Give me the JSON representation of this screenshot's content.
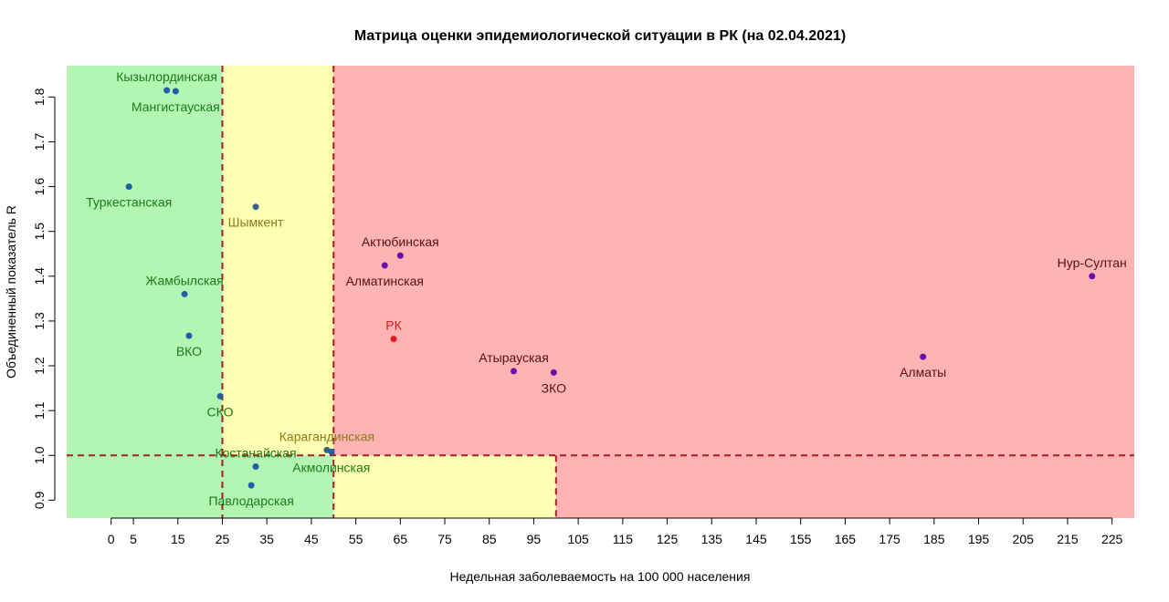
{
  "chart_data": {
    "type": "scatter",
    "title": "Матрица оценки эпидемиологической ситуации в РК (на 02.04.2021)",
    "xlabel": "Недельная заболеваемость на 100 000 населения",
    "ylabel": "Объединенный показатель R",
    "xlim": [
      -10,
      230
    ],
    "ylim": [
      0.86,
      1.87
    ],
    "x_ticks": [
      0,
      5,
      15,
      25,
      35,
      45,
      55,
      65,
      75,
      85,
      95,
      105,
      115,
      125,
      135,
      145,
      155,
      165,
      175,
      185,
      195,
      205,
      215,
      225
    ],
    "y_ticks": [
      0.9,
      1.0,
      1.1,
      1.2,
      1.3,
      1.4,
      1.5,
      1.6,
      1.7,
      1.8
    ],
    "thresholds": {
      "x": [
        25,
        50,
        100
      ],
      "y": 1.0
    },
    "zone_colors": {
      "green": "#b3f5b3",
      "yellow": "#ffffb3",
      "red": "#ffb3b3",
      "line": "#a32020"
    },
    "point_colors": {
      "green_zone": "#1f5fa8",
      "yellow_zone": "#3a5f8a",
      "red_zone": "#6a0dad",
      "rk": "#e11b1b"
    },
    "label_colors": {
      "green_zone": "#1a7a1a",
      "yellow_zone": "#8a7a1a",
      "red_zone": "#5a1010",
      "rk": "#e11b1b"
    },
    "points": [
      {
        "name": "Кызылординская",
        "x": 12.5,
        "y": 1.815,
        "zone": "green_zone",
        "label_pos": "above"
      },
      {
        "name": "Мангистауская",
        "x": 14.5,
        "y": 1.813,
        "zone": "green_zone",
        "label_pos": "below"
      },
      {
        "name": "Туркестанская",
        "x": 4,
        "y": 1.6,
        "zone": "green_zone",
        "label_pos": "below"
      },
      {
        "name": "Шымкент",
        "x": 32.5,
        "y": 1.555,
        "zone": "yellow_zone",
        "label_pos": "below"
      },
      {
        "name": "Жамбылская",
        "x": 16.5,
        "y": 1.36,
        "zone": "green_zone",
        "label_pos": "above"
      },
      {
        "name": "ВКО",
        "x": 17.5,
        "y": 1.267,
        "zone": "green_zone",
        "label_pos": "below"
      },
      {
        "name": "СКО",
        "x": 24.5,
        "y": 1.132,
        "zone": "green_zone",
        "label_pos": "below"
      },
      {
        "name": "Карагандинская",
        "x": 48.5,
        "y": 1.012,
        "zone": "yellow_zone",
        "label_pos": "above"
      },
      {
        "name": "Костанайская",
        "x": 32.5,
        "y": 0.975,
        "zone": "green_zone",
        "label_pos": "above"
      },
      {
        "name": "Акмолинская",
        "x": 49.5,
        "y": 1.008,
        "zone": "green_zone",
        "label_pos": "below"
      },
      {
        "name": "Павлодарская",
        "x": 31.5,
        "y": 0.933,
        "zone": "green_zone",
        "label_pos": "below"
      },
      {
        "name": "Актюбинская",
        "x": 65,
        "y": 1.446,
        "zone": "red_zone",
        "label_pos": "above"
      },
      {
        "name": "Алматинская",
        "x": 61.5,
        "y": 1.424,
        "zone": "red_zone",
        "label_pos": "below"
      },
      {
        "name": "РК",
        "x": 63.5,
        "y": 1.26,
        "zone": "rk",
        "label_pos": "above"
      },
      {
        "name": "Атырауская",
        "x": 90.5,
        "y": 1.188,
        "zone": "red_zone",
        "label_pos": "above"
      },
      {
        "name": "ЗКО",
        "x": 99.5,
        "y": 1.185,
        "zone": "red_zone",
        "label_pos": "below"
      },
      {
        "name": "Алматы",
        "x": 182.5,
        "y": 1.22,
        "zone": "red_zone",
        "label_pos": "below"
      },
      {
        "name": "Нур-Султан",
        "x": 220.5,
        "y": 1.4,
        "zone": "red_zone",
        "label_pos": "above"
      }
    ]
  }
}
